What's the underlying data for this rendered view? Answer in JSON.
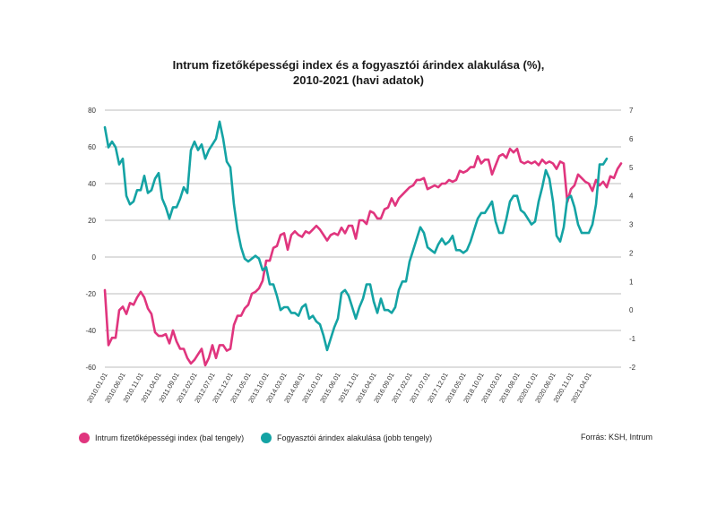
{
  "chart_data": {
    "type": "line",
    "title_lines": [
      "Intrum fizetőképességi index és a fogyasztói árindex alakulása (%),",
      "2010-2021 (havi adatok)"
    ],
    "left_axis": {
      "ylim": [
        -60,
        80
      ],
      "ticks": [
        "80",
        "60",
        "40",
        "20",
        "0",
        "-20",
        "-40",
        "-60"
      ]
    },
    "right_axis": {
      "ylim": [
        -2,
        7
      ],
      "ticks": [
        "7",
        "6",
        "5",
        "4",
        "3",
        "2",
        "1",
        "0",
        "-1",
        "-2"
      ]
    },
    "grid": true,
    "x_tick_labels": [
      "2010.01.01",
      "2010.06.01",
      "2010.11.01",
      "2011.04.01",
      "2011.09.01",
      "2012.02.01",
      "2012.07.01",
      "2012.12.01",
      "2013.05.01",
      "2013.10.01",
      "2014.03.01",
      "2014.08.01",
      "2015.01.01",
      "2015.06.01",
      "2015.11.01",
      "2016.04.01",
      "2016.09.01",
      "2017.02.01",
      "2017.07.01",
      "2017.12.01",
      "2018.05.01",
      "2018.10.01",
      "2019.03.01",
      "2019.08.01",
      "2020.01.01",
      "2020.06.01",
      "2020.11.01",
      "2021.04.01"
    ],
    "series": [
      {
        "name": "Intrum fizetőképességi index (bal tengely)",
        "axis": "left",
        "color": "#e0357e",
        "values": [
          -18,
          -48,
          -44,
          -44,
          -29,
          -27,
          -31,
          -25,
          -26,
          -22,
          -19,
          -22,
          -28,
          -31,
          -41,
          -43,
          -43,
          -42,
          -47,
          -40,
          -46,
          -50,
          -50,
          -55,
          -58,
          -56,
          -53,
          -50,
          -59,
          -55,
          -48,
          -55,
          -48,
          -48,
          -51,
          -50,
          -37,
          -32,
          -32,
          -28,
          -26,
          -20,
          -19,
          -17,
          -13,
          -2,
          -2,
          5,
          6,
          12,
          13,
          4,
          12,
          14,
          12,
          11,
          14,
          13,
          15,
          17,
          15,
          12,
          9,
          12,
          13,
          12,
          16,
          13,
          17,
          17,
          10,
          20,
          20,
          18,
          25,
          24,
          21,
          21,
          26,
          27,
          32,
          28,
          32,
          34,
          36,
          38,
          39,
          42,
          42,
          43,
          37,
          38,
          39,
          38,
          40,
          40,
          42,
          41,
          42,
          47,
          46,
          47,
          49,
          49,
          55,
          51,
          53,
          53,
          45,
          50,
          55,
          56,
          54,
          59,
          57,
          59,
          52,
          51,
          52,
          51,
          52,
          50,
          53,
          51,
          52,
          51,
          48,
          52,
          51,
          30,
          37,
          39,
          45,
          43,
          41,
          40,
          36,
          42,
          39,
          41,
          38,
          44,
          43,
          48,
          51
        ]
      },
      {
        "name": "Fogyasztói árindex alakulása (jobb tengely)",
        "axis": "right",
        "color": "#14a3a4",
        "values": [
          6.4,
          5.7,
          5.9,
          5.7,
          5.1,
          5.3,
          4.0,
          3.7,
          3.8,
          4.2,
          4.2,
          4.7,
          4.1,
          4.2,
          4.6,
          4.8,
          3.9,
          3.6,
          3.2,
          3.6,
          3.6,
          3.9,
          4.3,
          4.1,
          5.6,
          5.9,
          5.6,
          5.8,
          5.3,
          5.6,
          5.8,
          6.0,
          6.6,
          6.0,
          5.2,
          5.0,
          3.7,
          2.8,
          2.2,
          1.8,
          1.7,
          1.8,
          1.9,
          1.8,
          1.4,
          1.5,
          0.9,
          0.9,
          0.5,
          0.0,
          0.1,
          0.1,
          -0.1,
          -0.1,
          -0.2,
          0.1,
          0.2,
          -0.3,
          -0.2,
          -0.4,
          -0.5,
          -0.9,
          -1.4,
          -1.0,
          -0.6,
          -0.3,
          0.6,
          0.7,
          0.5,
          0.1,
          -0.3,
          0.1,
          0.4,
          0.9,
          0.9,
          0.3,
          -0.1,
          0.4,
          0.0,
          0.0,
          -0.1,
          0.1,
          0.7,
          1.0,
          1.0,
          1.7,
          2.1,
          2.5,
          2.9,
          2.7,
          2.2,
          2.1,
          2.0,
          2.3,
          2.5,
          2.3,
          2.4,
          2.6,
          2.1,
          2.1,
          2.0,
          2.1,
          2.4,
          2.8,
          3.2,
          3.4,
          3.4,
          3.6,
          3.8,
          3.1,
          2.7,
          2.7,
          3.2,
          3.8,
          4.0,
          4.0,
          3.5,
          3.4,
          3.2,
          3.0,
          3.1,
          3.8,
          4.3,
          4.9,
          4.6,
          3.8,
          2.6,
          2.4,
          2.9,
          3.9,
          4.0,
          3.6,
          3.0,
          2.7,
          2.7,
          2.7,
          3.0,
          3.7,
          5.1,
          5.1,
          5.3
        ]
      }
    ],
    "source": "Forrás: KSH, Intrum"
  }
}
